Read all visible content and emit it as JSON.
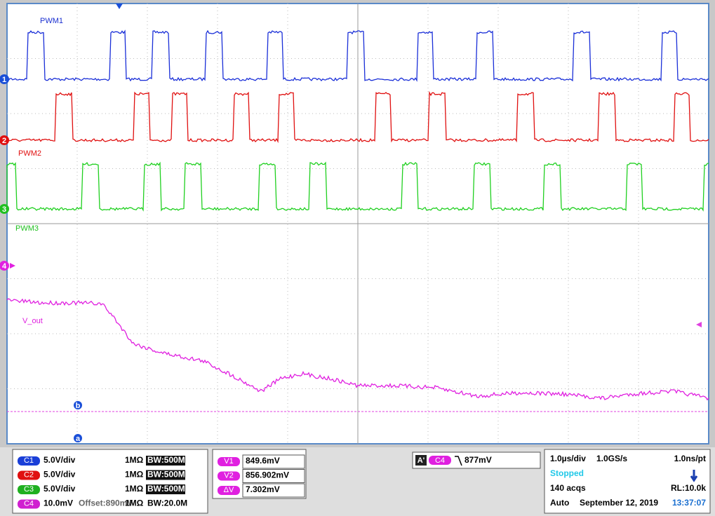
{
  "screen": {
    "trace_labels": [
      "PWM1",
      "PWM2",
      "PWM3",
      "V_out"
    ],
    "channel_markers": [
      "1",
      "2",
      "3",
      "4"
    ],
    "cursor_markers": [
      "b",
      "a"
    ]
  },
  "channels": [
    {
      "badge": "C1",
      "scale": "5.0V/div",
      "impedance": "1MΩ",
      "bandwidth": "BW:500M"
    },
    {
      "badge": "C2",
      "scale": "5.0V/div",
      "impedance": "1MΩ",
      "bandwidth": "BW:500M"
    },
    {
      "badge": "C3",
      "scale": "5.0V/div",
      "impedance": "1MΩ",
      "bandwidth": "BW:500M"
    },
    {
      "badge": "C4",
      "scale": "10.0mV",
      "offset": "Offset:890mV",
      "impedance": "1MΩ",
      "bandwidth": "BW:20.0M"
    }
  ],
  "cursors": [
    {
      "badge": "V1",
      "value": "849.6mV"
    },
    {
      "badge": "V2",
      "value": "856.902mV"
    },
    {
      "badge": "ΔV",
      "value": "7.302mV"
    }
  ],
  "trigger": {
    "mode": "A'",
    "source": "C4",
    "level": "877mV"
  },
  "timebase": {
    "scale": "1.0µs/div",
    "sample_rate": "1.0GS/s",
    "resolution": "1.0ns/pt",
    "state": "Stopped",
    "acquisitions": "140 acqs",
    "record_length": "RL:10.0k",
    "trigger_mode": "Auto",
    "date": "September 12, 2019",
    "time": "13:37:07"
  }
}
